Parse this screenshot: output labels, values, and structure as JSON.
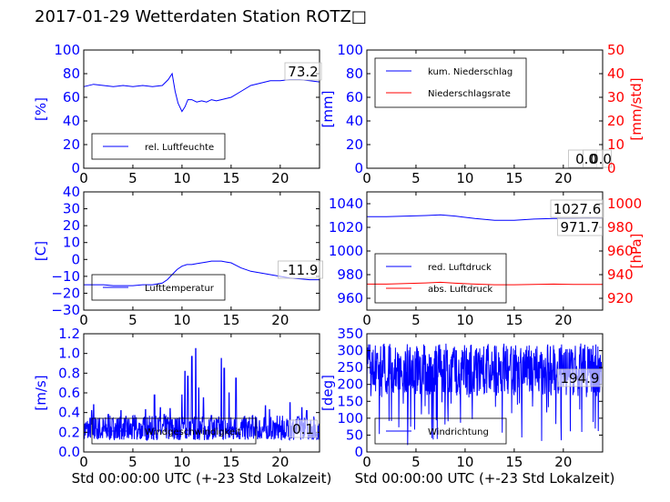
{
  "title": "2017-01-29 Wetterdaten Station ROTZ□",
  "colors": {
    "primary": "#0000ff",
    "secondary": "#ff0000",
    "axis": "#000000"
  },
  "chart_data": [
    {
      "id": "humidity",
      "type": "line",
      "ylabel": "[%]",
      "xlabel": "",
      "xlim": [
        0,
        24
      ],
      "ylim": [
        0,
        100
      ],
      "xticks": [
        "0",
        "5",
        "10",
        "15",
        "20"
      ],
      "yticks": [
        "0",
        "20",
        "40",
        "60",
        "80",
        "100"
      ],
      "legend": {
        "placement": "lower-left",
        "entries": [
          {
            "label": "rel. Luftfeuchte",
            "color": "#0000ff"
          }
        ]
      },
      "annotations": [
        "73.2"
      ],
      "series": [
        {
          "name": "rel. Luftfeuchte",
          "color": "#0000ff",
          "x": [
            0,
            1,
            2,
            3,
            4,
            5,
            6,
            7,
            8,
            8.6,
            9,
            9.3,
            9.6,
            10,
            10.3,
            10.6,
            11,
            11.5,
            12,
            12.5,
            13,
            13.5,
            14,
            15,
            16,
            17,
            18,
            19,
            20,
            21,
            22,
            23,
            24
          ],
          "y": [
            69,
            71,
            70,
            69,
            70,
            69,
            70,
            69,
            70,
            75,
            80,
            65,
            55,
            48,
            52,
            58,
            58,
            56,
            57,
            56,
            58,
            57,
            58,
            60,
            65,
            70,
            72,
            74,
            74,
            75,
            75,
            74,
            73
          ]
        }
      ]
    },
    {
      "id": "precipitation",
      "type": "line",
      "ylabel": "[mm]",
      "y2label": "[mm/std]",
      "xlabel": "",
      "xlim": [
        0,
        24
      ],
      "ylim": [
        0,
        100
      ],
      "y2lim": [
        0,
        50
      ],
      "xticks": [
        "0",
        "5",
        "10",
        "15",
        "20"
      ],
      "yticks": [
        "0",
        "20",
        "40",
        "60",
        "80",
        "100"
      ],
      "y2ticks": [
        "0",
        "10",
        "20",
        "30",
        "40",
        "50"
      ],
      "legend": {
        "placement": "upper-left",
        "entries": [
          {
            "label": "kum. Niederschlag",
            "color": "#0000ff"
          },
          {
            "label": "Niederschlagsrate",
            "color": "#ff0000"
          }
        ]
      },
      "annotations": [
        "0.0",
        "0.0"
      ],
      "series": [
        {
          "name": "kum. Niederschlag",
          "color": "#0000ff",
          "x": [
            0,
            24
          ],
          "y": [
            0,
            0
          ]
        },
        {
          "name": "Niederschlagsrate",
          "color": "#ff0000",
          "x": [
            0,
            24
          ],
          "y": [
            0,
            0
          ]
        }
      ]
    },
    {
      "id": "temperature",
      "type": "line",
      "ylabel": "[C]",
      "xlabel": "",
      "xlim": [
        0,
        24
      ],
      "ylim": [
        -30,
        40
      ],
      "xticks": [
        "0",
        "5",
        "10",
        "15",
        "20"
      ],
      "yticks": [
        "−30",
        "−20",
        "−10",
        "0",
        "10",
        "20",
        "30",
        "40"
      ],
      "legend": {
        "placement": "lower-left",
        "entries": [
          {
            "label": "Lufttemperatur",
            "color": "#0000ff"
          }
        ]
      },
      "annotations": [
        "-11.9"
      ],
      "series": [
        {
          "name": "Lufttemperatur",
          "color": "#0000ff",
          "x": [
            0,
            1,
            2,
            3,
            4,
            5,
            6,
            7,
            8,
            8.5,
            9,
            9.5,
            10,
            10.5,
            11,
            11.5,
            12,
            12.5,
            13,
            13.5,
            14,
            14.5,
            15,
            16,
            17,
            18,
            19,
            20,
            21,
            22,
            23,
            24
          ],
          "y": [
            -15,
            -15,
            -15,
            -15.5,
            -15.5,
            -15.5,
            -15,
            -15,
            -14,
            -12,
            -9,
            -6,
            -4,
            -3,
            -3,
            -2.5,
            -2,
            -1.5,
            -1,
            -1,
            -1,
            -1.5,
            -2,
            -5,
            -7,
            -8,
            -9,
            -10,
            -11,
            -11.5,
            -12,
            -12
          ]
        }
      ]
    },
    {
      "id": "pressure",
      "type": "line",
      "ylabel": "",
      "y2label": "[hPa]",
      "xlabel": "",
      "xlim": [
        0,
        24
      ],
      "ylim": [
        950,
        1050
      ],
      "y2lim": [
        910,
        1010
      ],
      "xticks": [
        "0",
        "5",
        "10",
        "15",
        "20"
      ],
      "yticks": [
        "960",
        "980",
        "1000",
        "1020",
        "1040"
      ],
      "y2ticks": [
        "920",
        "940",
        "960",
        "980",
        "1000"
      ],
      "legend": {
        "placement": "lower-left",
        "entries": [
          {
            "label": "red. Luftdruck",
            "color": "#0000ff"
          },
          {
            "label": "abs. Luftdruck",
            "color": "#ff0000"
          }
        ]
      },
      "annotations": [
        "1027.6",
        "971.7"
      ],
      "series": [
        {
          "name": "red. Luftdruck",
          "color": "#0000ff",
          "x": [
            0,
            2,
            4,
            6,
            7.5,
            9,
            11,
            13,
            15,
            17,
            19,
            21,
            22.5,
            24
          ],
          "y": [
            1029,
            1029,
            1029.5,
            1030,
            1030.5,
            1029.5,
            1027.5,
            1026,
            1026,
            1027,
            1027.5,
            1027.5,
            1027.8,
            1027.6
          ]
        },
        {
          "name": "abs. Luftdruck",
          "color": "#ff0000",
          "x": [
            0,
            2,
            4,
            6,
            7.5,
            9,
            11,
            13,
            15,
            17,
            19,
            21,
            22.5,
            24
          ],
          "y": [
            972,
            972,
            972.5,
            973,
            973.5,
            972.8,
            972,
            971.5,
            971.5,
            971.8,
            972,
            971.8,
            971.7,
            971.7
          ]
        }
      ]
    },
    {
      "id": "windspeed",
      "type": "line",
      "ylabel": "[m/s]",
      "xlabel": "Std 00:00:00 UTC (+-23 Std Lokalzeit)",
      "xlim": [
        0,
        24
      ],
      "ylim": [
        0,
        1.2
      ],
      "xticks": [
        "0",
        "5",
        "10",
        "15",
        "20"
      ],
      "yticks": [
        "0.0",
        "0.2",
        "0.4",
        "0.6",
        "0.8",
        "1.0",
        "1.2"
      ],
      "legend": {
        "placement": "lower-center",
        "entries": [
          {
            "label": "Windgeschwindigkeit",
            "color": "#0000ff"
          }
        ]
      },
      "annotations": [
        "0.1"
      ],
      "series": [
        {
          "name": "Windgeschwindigkeit",
          "color": "#0000ff",
          "style": "noisy",
          "seed": 7,
          "base": 0.22,
          "noise": 0.15,
          "peaks": [
            [
              0.8,
              0.42
            ],
            [
              1.0,
              0.48
            ],
            [
              2.5,
              0.38
            ],
            [
              3.8,
              0.42
            ],
            [
              5.2,
              0.37
            ],
            [
              6.3,
              0.43
            ],
            [
              7.2,
              0.58
            ],
            [
              7.8,
              0.45
            ],
            [
              8.2,
              0.38
            ],
            [
              8.8,
              0.44
            ],
            [
              10.0,
              0.58
            ],
            [
              10.3,
              0.82
            ],
            [
              10.6,
              0.77
            ],
            [
              11.0,
              0.97
            ],
            [
              11.4,
              1.05
            ],
            [
              11.7,
              0.65
            ],
            [
              12.2,
              0.55
            ],
            [
              13.0,
              0.37
            ],
            [
              14.0,
              0.95
            ],
            [
              14.3,
              0.85
            ],
            [
              14.8,
              0.6
            ],
            [
              15.5,
              0.75
            ],
            [
              17.2,
              0.37
            ],
            [
              18.5,
              0.47
            ],
            [
              18.9,
              0.43
            ],
            [
              21.0,
              0.5
            ],
            [
              21.8,
              0.35
            ],
            [
              22.2,
              0.45
            ],
            [
              22.7,
              0.42
            ]
          ]
        }
      ]
    },
    {
      "id": "winddirection",
      "type": "line",
      "ylabel": "[deg]",
      "xlabel": "Std 00:00:00 UTC (+-23 Std Lokalzeit)",
      "xlim": [
        0,
        24
      ],
      "ylim": [
        0,
        360
      ],
      "xticks": [
        "0",
        "5",
        "10",
        "15",
        "20"
      ],
      "yticks": [
        "0",
        "50",
        "100",
        "150",
        "200",
        "250",
        "300",
        "350"
      ],
      "legend": {
        "placement": "lower-left",
        "entries": [
          {
            "label": "Windrichtung",
            "color": "#0000ff"
          }
        ]
      },
      "annotations": [
        "194.9"
      ],
      "series": [
        {
          "name": "Windrichtung",
          "color": "#0000ff",
          "style": "noisy",
          "seed": 13,
          "base": 250,
          "noise": 80,
          "min": 20,
          "max": 345
        }
      ]
    }
  ]
}
